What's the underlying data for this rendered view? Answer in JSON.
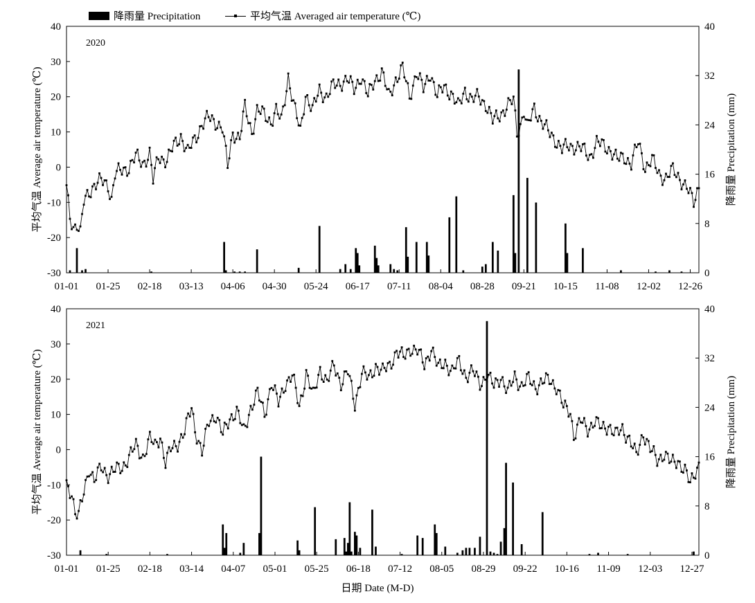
{
  "legend": {
    "precip_label": "降雨量 Precipitation",
    "temp_label": "平均气温 Averaged air temperature (℃)"
  },
  "x_axis_label": "日期 Date (M-D)",
  "chart_data": [
    {
      "type": "bar+line",
      "title": "2020",
      "ylabel": "平均气温 Average air temperature (℃)",
      "y2label": "降雨量 Precipitation (mm)",
      "ylim": [
        -30,
        40
      ],
      "y2lim": [
        0,
        40
      ],
      "yticks": [
        -30,
        -20,
        -10,
        0,
        10,
        20,
        30,
        40
      ],
      "y2ticks": [
        0,
        8,
        16,
        24,
        32,
        40
      ],
      "xticks": [
        "01-01",
        "01-25",
        "02-18",
        "03-13",
        "04-06",
        "04-30",
        "05-24",
        "06-17",
        "07-11",
        "08-04",
        "08-28",
        "09-21",
        "10-15",
        "11-08",
        "12-02",
        "12-26"
      ],
      "xtick_days": [
        0,
        24,
        48,
        72,
        96,
        120,
        144,
        168,
        192,
        216,
        240,
        264,
        288,
        312,
        336,
        360
      ],
      "ndays": 366,
      "temp_anchors": [
        [
          0,
          -6
        ],
        [
          2,
          -14
        ],
        [
          4,
          -17
        ],
        [
          6,
          -16
        ],
        [
          8,
          -19
        ],
        [
          10,
          -10
        ],
        [
          13,
          -7
        ],
        [
          16,
          -5
        ],
        [
          20,
          -4
        ],
        [
          24,
          -5
        ],
        [
          26,
          -9
        ],
        [
          28,
          -2
        ],
        [
          32,
          -1
        ],
        [
          36,
          0
        ],
        [
          40,
          3
        ],
        [
          44,
          1
        ],
        [
          48,
          4
        ],
        [
          50,
          -4
        ],
        [
          53,
          3
        ],
        [
          58,
          2
        ],
        [
          62,
          6
        ],
        [
          66,
          9
        ],
        [
          70,
          4
        ],
        [
          74,
          8
        ],
        [
          78,
          12
        ],
        [
          82,
          14
        ],
        [
          86,
          13
        ],
        [
          90,
          11
        ],
        [
          93,
          0
        ],
        [
          96,
          10
        ],
        [
          100,
          8
        ],
        [
          103,
          17
        ],
        [
          107,
          10
        ],
        [
          110,
          16
        ],
        [
          114,
          15
        ],
        [
          118,
          13
        ],
        [
          121,
          16
        ],
        [
          124,
          13
        ],
        [
          128,
          26
        ],
        [
          131,
          18
        ],
        [
          135,
          10
        ],
        [
          138,
          21
        ],
        [
          142,
          16
        ],
        [
          146,
          22
        ],
        [
          150,
          20
        ],
        [
          154,
          23
        ],
        [
          158,
          24
        ],
        [
          162,
          25
        ],
        [
          166,
          22
        ],
        [
          170,
          26
        ],
        [
          174,
          20
        ],
        [
          178,
          25
        ],
        [
          182,
          27
        ],
        [
          186,
          20
        ],
        [
          190,
          25
        ],
        [
          194,
          28
        ],
        [
          198,
          20
        ],
        [
          202,
          27
        ],
        [
          206,
          22
        ],
        [
          210,
          27
        ],
        [
          214,
          20
        ],
        [
          218,
          23
        ],
        [
          222,
          21
        ],
        [
          226,
          17
        ],
        [
          230,
          22
        ],
        [
          234,
          19
        ],
        [
          238,
          20
        ],
        [
          242,
          18
        ],
        [
          246,
          13
        ],
        [
          250,
          15
        ],
        [
          254,
          17
        ],
        [
          258,
          19
        ],
        [
          260,
          10
        ],
        [
          262,
          12
        ],
        [
          264,
          16
        ],
        [
          266,
          11
        ],
        [
          270,
          17
        ],
        [
          274,
          13
        ],
        [
          278,
          10
        ],
        [
          282,
          8
        ],
        [
          286,
          5
        ],
        [
          290,
          6
        ],
        [
          294,
          6
        ],
        [
          298,
          5
        ],
        [
          302,
          3
        ],
        [
          306,
          7
        ],
        [
          310,
          6
        ],
        [
          314,
          5
        ],
        [
          318,
          2
        ],
        [
          322,
          3
        ],
        [
          326,
          1
        ],
        [
          330,
          7
        ],
        [
          334,
          0
        ],
        [
          338,
          2
        ],
        [
          342,
          -2
        ],
        [
          346,
          -3
        ],
        [
          350,
          -1
        ],
        [
          354,
          -3
        ],
        [
          358,
          -6
        ],
        [
          362,
          -10
        ],
        [
          365,
          -5
        ]
      ],
      "precip": [
        [
          2,
          0.4
        ],
        [
          6,
          4
        ],
        [
          9,
          0.4
        ],
        [
          11,
          0.6
        ],
        [
          49,
          0.2
        ],
        [
          91,
          5
        ],
        [
          92,
          0.4
        ],
        [
          97,
          0.2
        ],
        [
          100,
          0.2
        ],
        [
          103,
          0.2
        ],
        [
          110,
          3.8
        ],
        [
          134,
          0.8
        ],
        [
          146,
          7.6
        ],
        [
          158,
          0.6
        ],
        [
          161,
          1.4
        ],
        [
          164,
          0.6
        ],
        [
          167,
          4
        ],
        [
          168,
          3.2
        ],
        [
          169,
          1.2
        ],
        [
          178,
          4.4
        ],
        [
          179,
          2.4
        ],
        [
          180,
          1.2
        ],
        [
          187,
          1.4
        ],
        [
          189,
          0.6
        ],
        [
          191,
          0.4
        ],
        [
          196,
          7.4
        ],
        [
          197,
          2.6
        ],
        [
          202,
          5
        ],
        [
          208,
          5
        ],
        [
          209,
          2.8
        ],
        [
          221,
          9
        ],
        [
          225,
          12.4
        ],
        [
          229,
          0.4
        ],
        [
          240,
          1
        ],
        [
          242,
          1.4
        ],
        [
          246,
          5
        ],
        [
          249,
          3.6
        ],
        [
          258,
          12.6
        ],
        [
          259,
          3.2
        ],
        [
          261,
          33
        ],
        [
          266,
          15.4
        ],
        [
          271,
          11.4
        ],
        [
          288,
          8
        ],
        [
          289,
          3.2
        ],
        [
          298,
          4
        ],
        [
          320,
          0.4
        ],
        [
          340,
          0.2
        ],
        [
          348,
          0.4
        ],
        [
          355,
          0.2
        ]
      ]
    },
    {
      "type": "bar+line",
      "title": "2021",
      "ylabel": "平均气温 Average air temperature (℃)",
      "y2label": "降雨量 Precipitation (mm)",
      "ylim": [
        -30,
        40
      ],
      "y2lim": [
        0,
        40
      ],
      "yticks": [
        -30,
        -20,
        -10,
        0,
        10,
        20,
        30,
        40
      ],
      "y2ticks": [
        0,
        8,
        16,
        24,
        32,
        40
      ],
      "xticks": [
        "01-01",
        "01-25",
        "02-18",
        "03-14",
        "04-07",
        "05-01",
        "05-25",
        "06-18",
        "07-12",
        "08-05",
        "08-29",
        "09-22",
        "10-16",
        "11-09",
        "12-03",
        "12-27"
      ],
      "xtick_days": [
        0,
        24,
        48,
        72,
        96,
        120,
        144,
        168,
        192,
        216,
        240,
        264,
        288,
        312,
        336,
        360
      ],
      "ndays": 365,
      "temp_anchors": [
        [
          0,
          -10
        ],
        [
          3,
          -12
        ],
        [
          5,
          -18
        ],
        [
          7,
          -19
        ],
        [
          10,
          -12
        ],
        [
          13,
          -5
        ],
        [
          16,
          -9
        ],
        [
          20,
          -5
        ],
        [
          24,
          -7
        ],
        [
          28,
          -6
        ],
        [
          32,
          -5
        ],
        [
          36,
          -2
        ],
        [
          40,
          1
        ],
        [
          44,
          -2
        ],
        [
          48,
          3
        ],
        [
          51,
          1
        ],
        [
          54,
          4
        ],
        [
          57,
          -4
        ],
        [
          60,
          0
        ],
        [
          64,
          2
        ],
        [
          68,
          5
        ],
        [
          72,
          12
        ],
        [
          74,
          6
        ],
        [
          78,
          -1
        ],
        [
          82,
          8
        ],
        [
          86,
          10
        ],
        [
          90,
          4
        ],
        [
          94,
          9
        ],
        [
          98,
          11
        ],
        [
          102,
          5
        ],
        [
          106,
          12
        ],
        [
          110,
          16
        ],
        [
          114,
          10
        ],
        [
          118,
          19
        ],
        [
          122,
          13
        ],
        [
          126,
          19
        ],
        [
          130,
          21
        ],
        [
          134,
          12
        ],
        [
          138,
          22
        ],
        [
          142,
          15
        ],
        [
          146,
          23
        ],
        [
          150,
          19
        ],
        [
          154,
          24
        ],
        [
          158,
          19
        ],
        [
          162,
          22
        ],
        [
          166,
          13
        ],
        [
          170,
          22
        ],
        [
          174,
          20
        ],
        [
          178,
          24
        ],
        [
          182,
          22
        ],
        [
          186,
          24
        ],
        [
          190,
          28
        ],
        [
          194,
          26
        ],
        [
          198,
          29
        ],
        [
          202,
          28
        ],
        [
          206,
          24
        ],
        [
          210,
          29
        ],
        [
          214,
          23
        ],
        [
          218,
          25
        ],
        [
          222,
          22
        ],
        [
          226,
          25
        ],
        [
          230,
          21
        ],
        [
          234,
          22
        ],
        [
          238,
          19
        ],
        [
          242,
          21
        ],
        [
          246,
          18
        ],
        [
          250,
          21
        ],
        [
          254,
          16
        ],
        [
          258,
          21
        ],
        [
          262,
          18
        ],
        [
          266,
          20
        ],
        [
          270,
          18
        ],
        [
          274,
          19
        ],
        [
          278,
          20
        ],
        [
          282,
          18
        ],
        [
          286,
          12
        ],
        [
          290,
          11
        ],
        [
          292,
          4
        ],
        [
          296,
          8
        ],
        [
          300,
          6
        ],
        [
          304,
          8
        ],
        [
          308,
          6
        ],
        [
          312,
          7
        ],
        [
          316,
          4
        ],
        [
          320,
          6
        ],
        [
          324,
          3
        ],
        [
          328,
          -2
        ],
        [
          332,
          5
        ],
        [
          336,
          0
        ],
        [
          340,
          -3
        ],
        [
          344,
          -1
        ],
        [
          348,
          -4
        ],
        [
          352,
          -3
        ],
        [
          356,
          -6
        ],
        [
          359,
          -10
        ],
        [
          362,
          -6
        ],
        [
          364,
          -4
        ]
      ],
      "precip": [
        [
          8,
          0.8
        ],
        [
          23,
          0.2
        ],
        [
          58,
          0.2
        ],
        [
          90,
          5
        ],
        [
          91,
          1.2
        ],
        [
          92,
          3.6
        ],
        [
          100,
          0.4
        ],
        [
          102,
          2
        ],
        [
          111,
          3.6
        ],
        [
          112,
          16
        ],
        [
          133,
          2.4
        ],
        [
          134,
          0.8
        ],
        [
          143,
          7.8
        ],
        [
          155,
          2.6
        ],
        [
          160,
          2.8
        ],
        [
          161,
          0.6
        ],
        [
          162,
          2
        ],
        [
          163,
          8.6
        ],
        [
          164,
          0.6
        ],
        [
          166,
          3.8
        ],
        [
          167,
          3.2
        ],
        [
          169,
          1.2
        ],
        [
          176,
          7.4
        ],
        [
          178,
          1.4
        ],
        [
          193,
          0.2
        ],
        [
          202,
          3.2
        ],
        [
          205,
          2.8
        ],
        [
          212,
          5
        ],
        [
          213,
          3.6
        ],
        [
          218,
          1.4
        ],
        [
          225,
          0.4
        ],
        [
          228,
          0.8
        ],
        [
          230,
          1.2
        ],
        [
          232,
          1.2
        ],
        [
          235,
          1.2
        ],
        [
          238,
          3
        ],
        [
          242,
          38
        ],
        [
          244,
          0.6
        ],
        [
          246,
          0.4
        ],
        [
          248,
          0.2
        ],
        [
          250,
          2.2
        ],
        [
          252,
          4.4
        ],
        [
          253,
          15
        ],
        [
          257,
          11.8
        ],
        [
          262,
          1.8
        ],
        [
          274,
          7
        ],
        [
          301,
          0.2
        ],
        [
          306,
          0.4
        ],
        [
          323,
          0.2
        ],
        [
          361,
          0.6
        ]
      ]
    }
  ]
}
